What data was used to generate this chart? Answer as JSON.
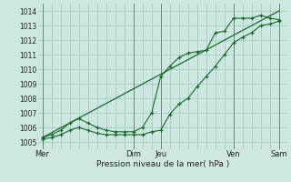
{
  "bg_color": "#cce8e0",
  "grid_color": "#99ccbb",
  "line_color": "#1a6b2a",
  "ylabel_ticks": [
    1005,
    1006,
    1007,
    1008,
    1009,
    1010,
    1011,
    1012,
    1013,
    1014
  ],
  "ylim": [
    1004.5,
    1014.5
  ],
  "xlabel": "Pression niveau de la mer( hPa )",
  "day_labels": [
    "Mer",
    "Dim",
    "Jeu",
    "Ven",
    "Sam"
  ],
  "day_positions": [
    0,
    10,
    13,
    21,
    26
  ],
  "vline_positions": [
    0,
    10,
    13,
    21,
    26
  ],
  "series1_x": [
    0,
    1,
    2,
    3,
    4,
    5,
    6,
    7,
    8,
    9,
    10,
    11,
    12,
    13,
    14,
    15,
    16,
    17,
    18,
    19,
    20,
    21,
    22,
    23,
    24,
    25,
    26
  ],
  "series1_y": [
    1005.2,
    1005.3,
    1005.5,
    1005.8,
    1006.0,
    1005.8,
    1005.6,
    1005.5,
    1005.5,
    1005.5,
    1005.5,
    1005.5,
    1005.7,
    1005.8,
    1006.9,
    1007.6,
    1008.0,
    1008.8,
    1009.5,
    1010.2,
    1011.0,
    1011.8,
    1012.2,
    1012.5,
    1013.0,
    1013.1,
    1013.3
  ],
  "series2_x": [
    0,
    1,
    2,
    3,
    4,
    5,
    6,
    7,
    8,
    9,
    10,
    11,
    12,
    13,
    14,
    15,
    16,
    17,
    18,
    19,
    20,
    21,
    22,
    23,
    24,
    25,
    26
  ],
  "series2_y": [
    1005.3,
    1005.5,
    1005.8,
    1006.3,
    1006.6,
    1006.3,
    1006.0,
    1005.8,
    1005.7,
    1005.7,
    1005.7,
    1006.0,
    1007.0,
    1009.5,
    1010.2,
    1010.8,
    1011.1,
    1011.2,
    1011.3,
    1012.5,
    1012.6,
    1013.5,
    1013.5,
    1013.5,
    1013.7,
    1013.5,
    1013.4
  ],
  "series3_x": [
    0,
    26
  ],
  "series3_y": [
    1005.3,
    1014.0
  ],
  "xlim": [
    -0.5,
    27
  ]
}
